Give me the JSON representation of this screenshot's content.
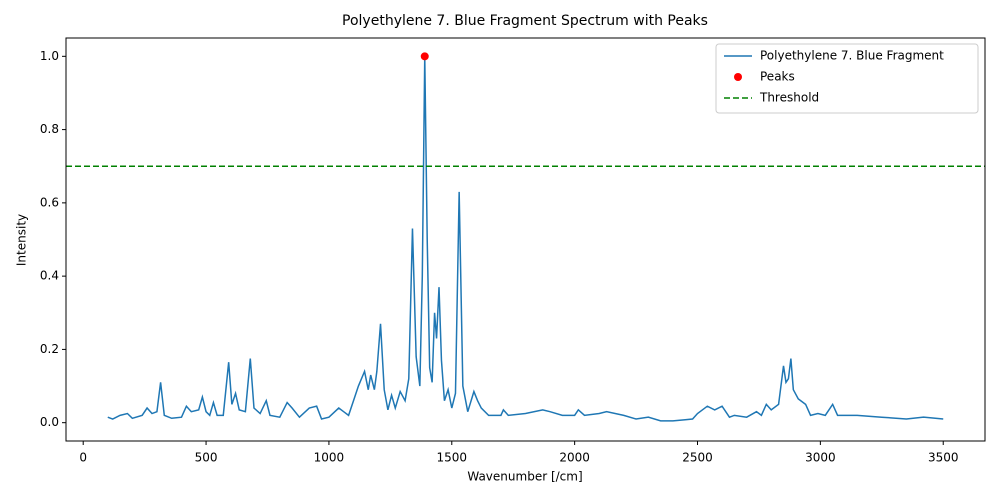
{
  "chart_data": {
    "type": "line",
    "title": "Polyethylene 7. Blue Fragment Spectrum with Peaks",
    "x_label": "Wavenumber [/cm]",
    "y_label": "Intensity",
    "xlim": [
      -70,
      3670
    ],
    "ylim": [
      -0.05,
      1.05
    ],
    "xticks": [
      0,
      500,
      1000,
      1500,
      2000,
      2500,
      3000,
      3500
    ],
    "yticks": [
      {
        "value": 0,
        "label": "0.0"
      },
      0.2,
      0.4,
      0.6,
      0.8,
      {
        "value": 1,
        "label": "1.0"
      }
    ],
    "legend": "upper right",
    "series": [
      {
        "name": "Polyethylene 7. Blue Fragment",
        "type": "line",
        "color": "#1f77b4",
        "x": [
          100,
          120,
          150,
          180,
          200,
          240,
          260,
          280,
          300,
          315,
          330,
          360,
          400,
          420,
          440,
          470,
          485,
          500,
          515,
          530,
          545,
          570,
          592,
          605,
          620,
          635,
          660,
          680,
          695,
          720,
          745,
          760,
          800,
          830,
          850,
          880,
          920,
          950,
          970,
          1000,
          1040,
          1060,
          1080,
          1100,
          1120,
          1145,
          1160,
          1170,
          1185,
          1195,
          1210,
          1225,
          1240,
          1255,
          1270,
          1290,
          1310,
          1325,
          1340,
          1355,
          1370,
          1380,
          1390,
          1400,
          1410,
          1420,
          1430,
          1438,
          1448,
          1458,
          1470,
          1485,
          1500,
          1515,
          1530,
          1545,
          1565,
          1590,
          1605,
          1620,
          1650,
          1700,
          1710,
          1730,
          1800,
          1870,
          1900,
          1950,
          2000,
          2015,
          2040,
          2100,
          2130,
          2200,
          2250,
          2300,
          2350,
          2400,
          2450,
          2480,
          2500,
          2540,
          2570,
          2600,
          2630,
          2650,
          2700,
          2740,
          2760,
          2780,
          2800,
          2830,
          2850,
          2860,
          2870,
          2880,
          2890,
          2910,
          2940,
          2960,
          2990,
          3020,
          3050,
          3070,
          3150,
          3250,
          3350,
          3420,
          3500
        ],
        "values": [
          0.015,
          0.01,
          0.02,
          0.025,
          0.012,
          0.02,
          0.04,
          0.025,
          0.03,
          0.11,
          0.02,
          0.012,
          0.015,
          0.045,
          0.03,
          0.035,
          0.07,
          0.03,
          0.02,
          0.055,
          0.02,
          0.02,
          0.165,
          0.05,
          0.08,
          0.035,
          0.03,
          0.175,
          0.04,
          0.025,
          0.06,
          0.02,
          0.015,
          0.055,
          0.04,
          0.015,
          0.04,
          0.045,
          0.01,
          0.015,
          0.04,
          0.03,
          0.02,
          0.06,
          0.1,
          0.14,
          0.09,
          0.13,
          0.09,
          0.14,
          0.27,
          0.09,
          0.035,
          0.075,
          0.04,
          0.085,
          0.06,
          0.12,
          0.53,
          0.18,
          0.1,
          0.4,
          1.0,
          0.5,
          0.15,
          0.11,
          0.3,
          0.23,
          0.37,
          0.17,
          0.06,
          0.09,
          0.04,
          0.08,
          0.63,
          0.1,
          0.03,
          0.085,
          0.06,
          0.04,
          0.02,
          0.02,
          0.035,
          0.02,
          0.025,
          0.035,
          0.03,
          0.02,
          0.02,
          0.035,
          0.02,
          0.025,
          0.03,
          0.02,
          0.01,
          0.015,
          0.005,
          0.005,
          0.008,
          0.01,
          0.025,
          0.045,
          0.035,
          0.045,
          0.015,
          0.02,
          0.015,
          0.03,
          0.02,
          0.05,
          0.035,
          0.05,
          0.155,
          0.11,
          0.12,
          0.175,
          0.09,
          0.065,
          0.05,
          0.02,
          0.025,
          0.02,
          0.05,
          0.02,
          0.02,
          0.015,
          0.01,
          0.015,
          0.01
        ]
      },
      {
        "name": "Peaks",
        "type": "scatter",
        "color": "#ff0000",
        "x": [
          1390
        ],
        "values": [
          1.0
        ]
      },
      {
        "name": "Threshold",
        "type": "hline",
        "color": "#008000",
        "value": 0.7
      }
    ]
  }
}
